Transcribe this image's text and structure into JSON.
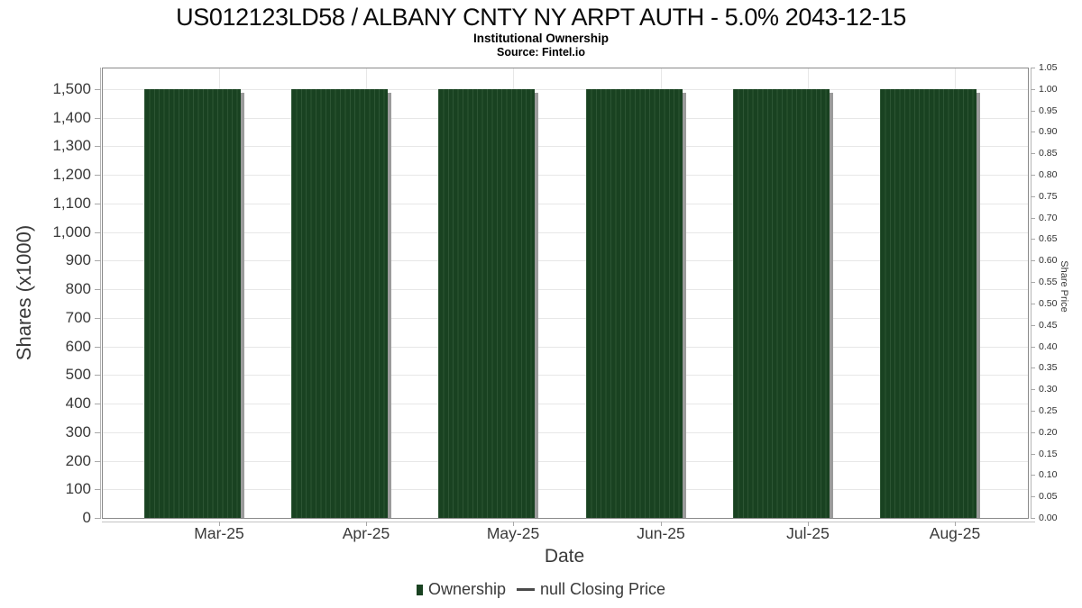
{
  "chart_data": {
    "type": "bar",
    "title": "US012123LD58 / ALBANY CNTY NY ARPT AUTH - 5.0% 2043-12-15",
    "subtitle": "Institutional Ownership",
    "source": "Source: Fintel.io",
    "xlabel": "Date",
    "categories": [
      "Mar-25",
      "Apr-25",
      "May-25",
      "Jun-25",
      "Jul-25",
      "Aug-25"
    ],
    "series": [
      {
        "name": "Ownership",
        "values": [
          1500,
          1500,
          1500,
          1500,
          1500,
          1500
        ]
      }
    ],
    "right_series": {
      "name": "null Closing Price",
      "values": []
    },
    "y_left": {
      "label": "Shares (x1000)",
      "min": 0,
      "max_tick": 1500,
      "axis_max": 1575,
      "tick_values": [
        0,
        100,
        200,
        300,
        400,
        500,
        600,
        700,
        800,
        900,
        1000,
        1100,
        1200,
        1300,
        1400,
        1500
      ],
      "tick_labels": [
        "0",
        "100",
        "200",
        "300",
        "400",
        "500",
        "600",
        "700",
        "800",
        "900",
        "1,000",
        "1,100",
        "1,200",
        "1,300",
        "1,400",
        "1,500"
      ]
    },
    "y_right": {
      "label": "Share Price",
      "min": 0,
      "axis_max": 1.05,
      "tick_values": [
        0,
        0.05,
        0.1,
        0.15,
        0.2,
        0.25,
        0.3,
        0.35,
        0.4,
        0.45,
        0.5,
        0.55,
        0.6,
        0.65,
        0.7,
        0.75,
        0.8,
        0.85,
        0.9,
        0.95,
        1.0,
        1.05
      ],
      "tick_labels": [
        "0.00",
        "0.05",
        "0.10",
        "0.15",
        "0.20",
        "0.25",
        "0.30",
        "0.35",
        "0.40",
        "0.45",
        "0.50",
        "0.55",
        "0.60",
        "0.65",
        "0.70",
        "0.75",
        "0.80",
        "0.85",
        "0.90",
        "0.95",
        "1.00",
        "1.05"
      ]
    },
    "legend": [
      {
        "label": "Ownership",
        "marker": "square"
      },
      {
        "label": "null Closing Price",
        "marker": "line"
      }
    ],
    "grid": true,
    "legend_position": "bottom"
  },
  "colors": {
    "bar_fill": "#194221",
    "bar_stripe": "#2d5534",
    "bar_shadow": "#9b9b9b",
    "grid": "#e7e7e7",
    "plot_border": "#8a8a8a",
    "axis": "#b5b5b5",
    "tick": "#a8a8a8",
    "text": "#3a3a3a",
    "legend_line": "#4a4a4a"
  }
}
